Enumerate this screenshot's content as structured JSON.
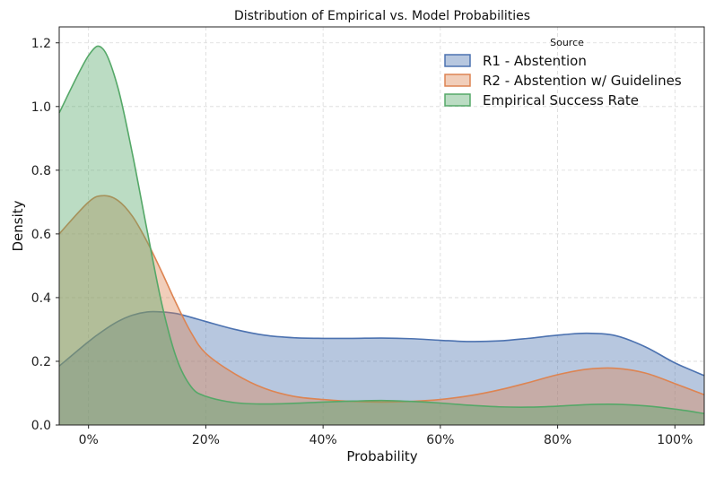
{
  "chart_data": {
    "type": "area",
    "title": "Distribution of Empirical vs. Model Probabilities",
    "xlabel": "Probability",
    "ylabel": "Density",
    "xlim": [
      -0.05,
      1.05
    ],
    "ylim": [
      0,
      1.25
    ],
    "grid": true,
    "legend_position": "top-right",
    "legend_title": "Source",
    "x_ticks": [
      0,
      0.2,
      0.4,
      0.6,
      0.8,
      1.0
    ],
    "x_tick_labels": [
      "0%",
      "20%",
      "40%",
      "60%",
      "80%",
      "100%"
    ],
    "y_ticks": [
      0.0,
      0.2,
      0.4,
      0.6,
      0.8,
      1.0,
      1.2
    ],
    "y_tick_labels": [
      "0.0",
      "0.2",
      "0.4",
      "0.6",
      "0.8",
      "1.0",
      "1.2"
    ],
    "x": [
      -0.05,
      0.0,
      0.025,
      0.05,
      0.075,
      0.1,
      0.125,
      0.15,
      0.175,
      0.2,
      0.25,
      0.3,
      0.35,
      0.4,
      0.45,
      0.5,
      0.55,
      0.6,
      0.65,
      0.7,
      0.75,
      0.8,
      0.85,
      0.9,
      0.95,
      1.0,
      1.05
    ],
    "series": [
      {
        "name": "R1 - Abstention",
        "color": "#4c72b0",
        "values": [
          0.185,
          0.262,
          0.296,
          0.325,
          0.345,
          0.355,
          0.355,
          0.35,
          0.338,
          0.325,
          0.3,
          0.282,
          0.274,
          0.272,
          0.272,
          0.273,
          0.271,
          0.266,
          0.262,
          0.264,
          0.272,
          0.282,
          0.288,
          0.28,
          0.245,
          0.195,
          0.155
        ]
      },
      {
        "name": "R2 - Abstention w/ Guidelines",
        "color": "#dd8452",
        "values": [
          0.6,
          0.7,
          0.72,
          0.705,
          0.655,
          0.575,
          0.48,
          0.38,
          0.29,
          0.225,
          0.16,
          0.115,
          0.09,
          0.08,
          0.074,
          0.072,
          0.074,
          0.08,
          0.092,
          0.11,
          0.133,
          0.158,
          0.175,
          0.178,
          0.163,
          0.13,
          0.095
        ]
      },
      {
        "name": "Empirical Success Rate",
        "color": "#55a868",
        "values": [
          0.98,
          1.16,
          1.18,
          1.06,
          0.85,
          0.61,
          0.38,
          0.21,
          0.12,
          0.09,
          0.07,
          0.066,
          0.068,
          0.072,
          0.075,
          0.077,
          0.074,
          0.069,
          0.062,
          0.057,
          0.056,
          0.059,
          0.064,
          0.065,
          0.06,
          0.05,
          0.036
        ]
      }
    ]
  }
}
